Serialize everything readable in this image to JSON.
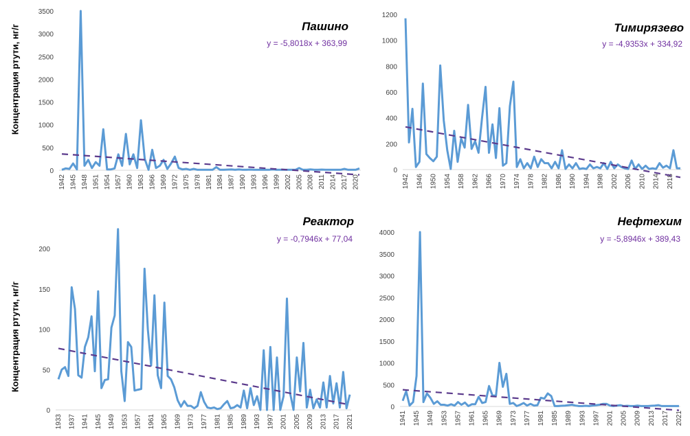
{
  "colors": {
    "series": "#5b9bd5",
    "trend": "#5b3a8c",
    "equation": "#7030a0",
    "axis": "#d9d9d9",
    "tick_text": "#404040"
  },
  "chart_data": [
    {
      "type": "line",
      "title": "Пашино",
      "ylabel": "Концентрация ртути, нг/г",
      "equation": "y = -5,8018x + 363,99",
      "trend": {
        "slope": -5.8018,
        "intercept": 363.99,
        "style": "dashed"
      },
      "ylim": [
        0,
        3500
      ],
      "yticks": [
        "0",
        "500",
        "1000",
        "1500",
        "2000",
        "2500",
        "3000",
        "3500"
      ],
      "x_start": 1942,
      "x_tick_labels": [
        "1942",
        "1945",
        "1948",
        "1951",
        "1954",
        "1957",
        "1960",
        "1963",
        "1966",
        "1969",
        "1972",
        "1975",
        "1978",
        "1981",
        "1984",
        "1987",
        "1990",
        "1993",
        "1996",
        "1999",
        "2002",
        "2005",
        "2008",
        "2011",
        "2014",
        "2017",
        "2020"
      ],
      "values": [
        10,
        40,
        30,
        150,
        20,
        3500,
        100,
        230,
        50,
        180,
        100,
        900,
        20,
        20,
        40,
        350,
        100,
        800,
        130,
        350,
        50,
        1100,
        250,
        10,
        450,
        50,
        100,
        230,
        30,
        150,
        300,
        50,
        20,
        30,
        10,
        30,
        10,
        10,
        10,
        10,
        10,
        70,
        10,
        10,
        15,
        20,
        10,
        20,
        10,
        10,
        15,
        10,
        10,
        10,
        10,
        10,
        20,
        10,
        10,
        10,
        10,
        10,
        10,
        50,
        10,
        10,
        20,
        10,
        10,
        15,
        10,
        10,
        10,
        10,
        10,
        30,
        10,
        10,
        10,
        40
      ],
      "grid": false
    },
    {
      "type": "line",
      "title": "Тимирязево",
      "ylabel": "",
      "equation": "y = -4,9353x + 334,92",
      "trend": {
        "slope": -4.9353,
        "intercept": 334.92,
        "style": "dashed"
      },
      "ylim": [
        0,
        1200
      ],
      "yticks": [
        "0",
        "200",
        "400",
        "600",
        "800",
        "1000",
        "1200"
      ],
      "x_start": 1942,
      "x_tick_labels": [
        "1942",
        "1946",
        "1950",
        "1954",
        "1958",
        "1962",
        "1966",
        "1970",
        "1974",
        "1978",
        "1982",
        "1986",
        "1990",
        "1994",
        "1998",
        "2002",
        "2006",
        "2010",
        "2014",
        "2018"
      ],
      "values": [
        1170,
        210,
        470,
        20,
        60,
        665,
        120,
        90,
        65,
        100,
        805,
        380,
        150,
        5,
        300,
        60,
        240,
        170,
        500,
        160,
        220,
        130,
        400,
        640,
        130,
        350,
        90,
        475,
        30,
        50,
        490,
        680,
        20,
        80,
        10,
        50,
        10,
        100,
        20,
        80,
        50,
        50,
        10,
        60,
        10,
        150,
        5,
        40,
        10,
        50,
        5,
        10,
        5,
        40,
        10,
        20,
        10,
        50,
        5,
        60,
        10,
        40,
        20,
        10,
        5,
        70,
        5,
        40,
        5,
        30,
        5,
        10,
        5,
        50,
        15,
        30,
        10,
        150,
        10,
        10
      ],
      "grid": false
    },
    {
      "type": "line",
      "title": "Реактор",
      "ylabel": "Концентрация ртути, нг/г",
      "equation": "y = -0,7946x + 77,04",
      "trend": {
        "slope": -0.7946,
        "intercept": 77.04,
        "style": "dashed"
      },
      "ylim": [
        0,
        250
      ],
      "yticks": [
        "0",
        "50",
        "100",
        "150",
        "200"
      ],
      "x_start": 1933,
      "x_tick_labels": [
        "1933",
        "1937",
        "1941",
        "1945",
        "1949",
        "1953",
        "1957",
        "1961",
        "1965",
        "1969",
        "1973",
        "1977",
        "1981",
        "1985",
        "1989",
        "1993",
        "1997",
        "2001",
        "2005",
        "2009",
        "2013",
        "2017",
        "2021"
      ],
      "values": [
        38,
        50,
        53,
        42,
        152,
        125,
        43,
        40,
        78,
        90,
        116,
        48,
        147,
        27,
        37,
        38,
        102,
        117,
        224,
        48,
        11,
        84,
        78,
        24,
        25,
        26,
        175,
        100,
        55,
        142,
        43,
        27,
        133,
        42,
        38,
        28,
        12,
        4,
        11,
        5,
        5,
        2,
        5,
        22,
        10,
        3,
        2,
        3,
        1,
        2,
        7,
        11,
        2,
        3,
        6,
        3,
        24,
        2,
        27,
        6,
        17,
        0,
        74,
        0,
        78,
        0,
        65,
        0,
        17,
        138,
        20,
        0,
        65,
        23,
        83,
        3,
        25,
        2,
        13,
        3,
        34,
        3,
        42,
        8,
        33,
        3,
        47,
        2,
        19
      ],
      "grid": false
    },
    {
      "type": "line",
      "title": "Нефтехим",
      "ylabel": "",
      "equation": "y = -5,8946x + 389,43",
      "trend": {
        "slope": -5.8946,
        "intercept": 389.43,
        "style": "dashed"
      },
      "ylim": [
        0,
        4000
      ],
      "yticks": [
        "0",
        "500",
        "1000",
        "1500",
        "2000",
        "2500",
        "3000",
        "3500",
        "4000"
      ],
      "x_start": 1941,
      "x_tick_labels": [
        "1941",
        "1945",
        "1949",
        "1953",
        "1957",
        "1961",
        "1965",
        "1969",
        "1973",
        "1977",
        "1981",
        "1985",
        "1989",
        "1993",
        "1997",
        "2001",
        "2005",
        "2009",
        "2013",
        "2017",
        "2021"
      ],
      "values": [
        130,
        350,
        20,
        100,
        700,
        4000,
        100,
        300,
        200,
        60,
        120,
        40,
        40,
        20,
        50,
        20,
        100,
        40,
        90,
        10,
        50,
        50,
        220,
        80,
        100,
        470,
        250,
        250,
        1000,
        450,
        750,
        60,
        80,
        10,
        40,
        80,
        20,
        60,
        20,
        30,
        200,
        180,
        300,
        240,
        10,
        10,
        15,
        20,
        30,
        40,
        20,
        10,
        10,
        15,
        10,
        20,
        30,
        40,
        60,
        60,
        20,
        10,
        20,
        30,
        10,
        15,
        10,
        10,
        20,
        10,
        10,
        10,
        15,
        20,
        30,
        10,
        10,
        10,
        10,
        10,
        10
      ],
      "grid": false
    }
  ]
}
